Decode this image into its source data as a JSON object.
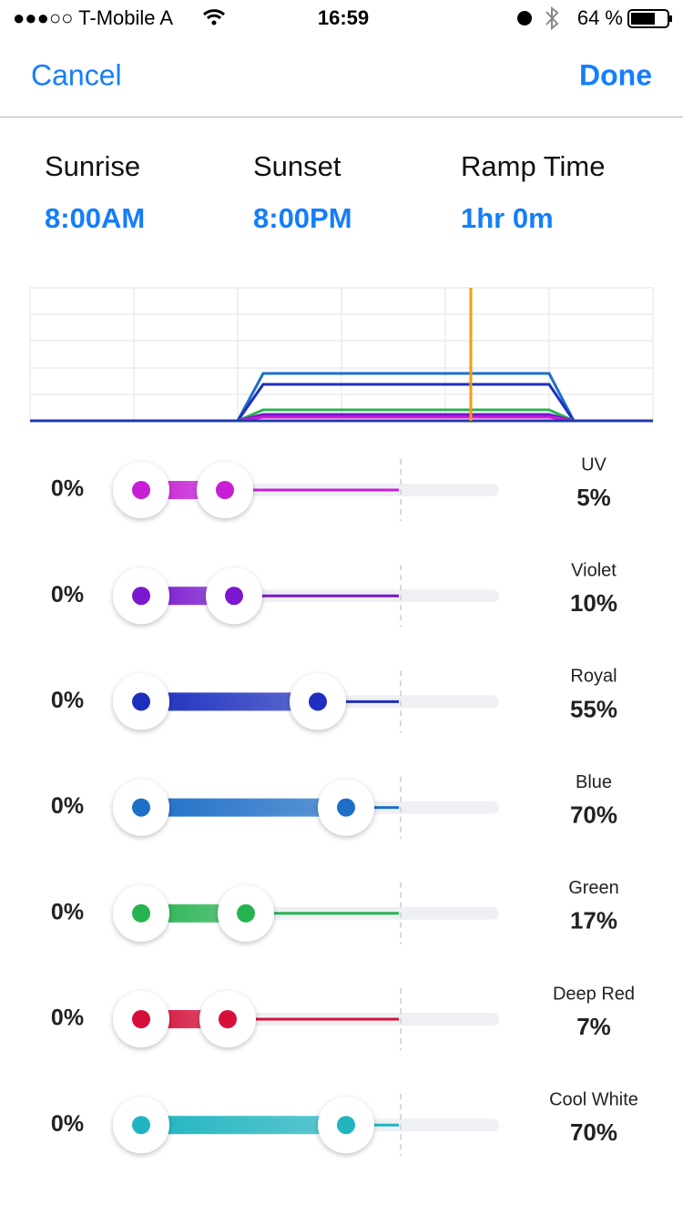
{
  "status_bar": {
    "carrier": "●●●○○ T-Mobile A",
    "time": "16:59",
    "battery": "64 %"
  },
  "nav": {
    "cancel": "Cancel",
    "done": "Done"
  },
  "schedule": [
    {
      "label": "Sunrise",
      "value": "8:00AM"
    },
    {
      "label": "Sunset",
      "value": "8:00PM"
    },
    {
      "label": "Ramp Time",
      "value": "1hr 0m"
    }
  ],
  "channels": [
    {
      "name": "UV",
      "min": "0%",
      "max": "5%",
      "color": "#c81ed6"
    },
    {
      "name": "Violet",
      "min": "0%",
      "max": "10%",
      "color": "#7a17cf"
    },
    {
      "name": "Royal",
      "min": "0%",
      "max": "55%",
      "color": "#1e2fbf"
    },
    {
      "name": "Blue",
      "min": "0%",
      "max": "70%",
      "color": "#1e6fc8"
    },
    {
      "name": "Green",
      "min": "0%",
      "max": "17%",
      "color": "#27b350"
    },
    {
      "name": "Deep Red",
      "min": "0%",
      "max": "7%",
      "color": "#d60f3a"
    },
    {
      "name": "Cool White",
      "min": "0%",
      "max": "70%",
      "color": "#20b5c0"
    }
  ]
}
